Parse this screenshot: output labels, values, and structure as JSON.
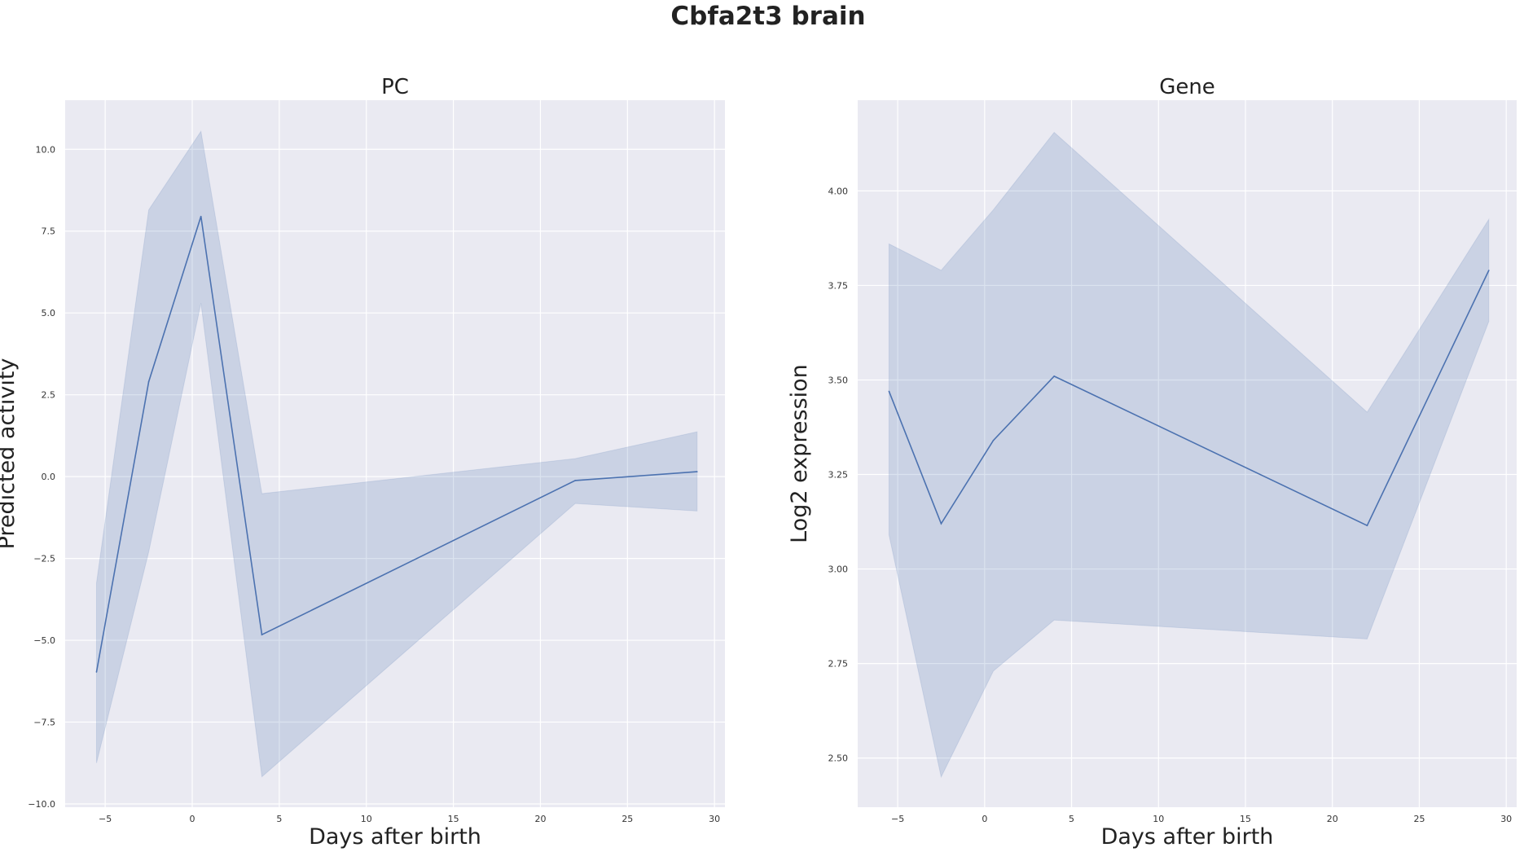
{
  "suptitle": "Cbfa2t3 brain",
  "chart_data": [
    {
      "type": "line",
      "title": "PC",
      "xlabel": "Days after birth",
      "ylabel": "Predicted activity",
      "xlim": [
        -7.3,
        30.6
      ],
      "ylim": [
        -10.1,
        11.5
      ],
      "xticks": [
        -5,
        0,
        5,
        10,
        15,
        20,
        25,
        30
      ],
      "xtick_labels": [
        "−5",
        "0",
        "5",
        "10",
        "15",
        "20",
        "25",
        "30"
      ],
      "yticks": [
        -10,
        -7.5,
        -5,
        -2.5,
        0,
        2.5,
        5,
        7.5,
        10
      ],
      "ytick_labels": [
        "−10.0",
        "−7.5",
        "−5.0",
        "−2.5",
        "0.0",
        "2.5",
        "5.0",
        "7.5",
        "10.0"
      ],
      "grid": true,
      "x": [
        -5.5,
        -2.5,
        0.5,
        4,
        22,
        29
      ],
      "series": [
        {
          "values": [
            -5.97,
            2.9,
            7.95,
            -4.83,
            -0.12,
            0.15
          ],
          "ci_lower": [
            -8.75,
            -2.3,
            5.3,
            -9.17,
            -0.82,
            -1.05
          ],
          "ci_upper": [
            -3.25,
            8.15,
            10.55,
            -0.52,
            0.55,
            1.37
          ],
          "color": "#4c72b0"
        }
      ]
    },
    {
      "type": "line",
      "title": "Gene",
      "xlabel": "Days after birth",
      "ylabel": "Log2 expression",
      "xlim": [
        -7.3,
        30.6
      ],
      "ylim": [
        2.37,
        4.24
      ],
      "xticks": [
        -5,
        0,
        5,
        10,
        15,
        20,
        25,
        30
      ],
      "xtick_labels": [
        "−5",
        "0",
        "5",
        "10",
        "15",
        "20",
        "25",
        "30"
      ],
      "yticks": [
        2.5,
        2.75,
        3.0,
        3.25,
        3.5,
        3.75,
        4.0
      ],
      "ytick_labels": [
        "2.50",
        "2.75",
        "3.00",
        "3.25",
        "3.50",
        "3.75",
        "4.00"
      ],
      "grid": true,
      "x": [
        -5.5,
        -2.5,
        0.5,
        4,
        22,
        29
      ],
      "series": [
        {
          "values": [
            3.47,
            3.12,
            3.34,
            3.51,
            3.115,
            3.79
          ],
          "ci_lower": [
            3.09,
            2.45,
            2.73,
            2.865,
            2.815,
            3.655
          ],
          "ci_upper": [
            3.86,
            3.79,
            3.95,
            4.155,
            3.415,
            3.925
          ],
          "color": "#4c72b0"
        }
      ]
    }
  ]
}
